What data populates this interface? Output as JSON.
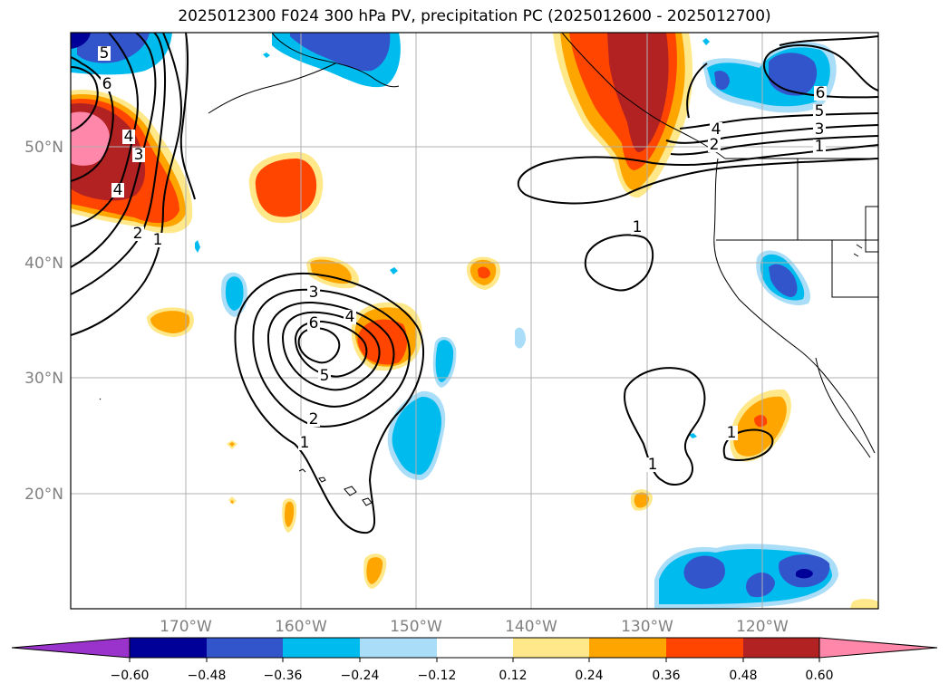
{
  "title": "2025012300 F024 300 hPa PV, precipitation PC (2025012600 - 2025012700)",
  "map": {
    "lon_ticks": [
      "170°W",
      "160°W",
      "150°W",
      "140°W",
      "130°W",
      "120°W"
    ],
    "lat_ticks": [
      "50°N",
      "40°N",
      "30°N",
      "20°N"
    ],
    "colors": {
      "ocean_bg": "#ffffff",
      "gridline": "#b0b0b0",
      "coast": "#000000"
    }
  },
  "colorbar": {
    "labels": [
      "−0.60",
      "−0.48",
      "−0.36",
      "−0.24",
      "−0.12",
      "0.12",
      "0.24",
      "0.36",
      "0.48",
      "0.60"
    ],
    "colors": [
      "#9933cc",
      "#000099",
      "#3355cc",
      "#00bbee",
      "#aaddf7",
      "#ffffff",
      "#ffe88a",
      "#ffa500",
      "#ff4500",
      "#b22222",
      "#ff88aa"
    ]
  },
  "contour_labels": {
    "pv": [
      "5",
      "6",
      "4",
      "3",
      "4",
      "2",
      "1",
      "3",
      "6",
      "4",
      "5",
      "2",
      "1",
      "1",
      "1",
      "1",
      "4",
      "6",
      "5",
      "3",
      "2",
      "1"
    ]
  },
  "fills": {
    "pink": "#ff88aa",
    "darkred": "#b22222",
    "red": "#ff4500",
    "orange": "#ffa500",
    "yellow": "#ffe88a",
    "lightblue": "#aaddf7",
    "cyan": "#00bbee",
    "blue": "#3355cc",
    "navy": "#000099"
  }
}
